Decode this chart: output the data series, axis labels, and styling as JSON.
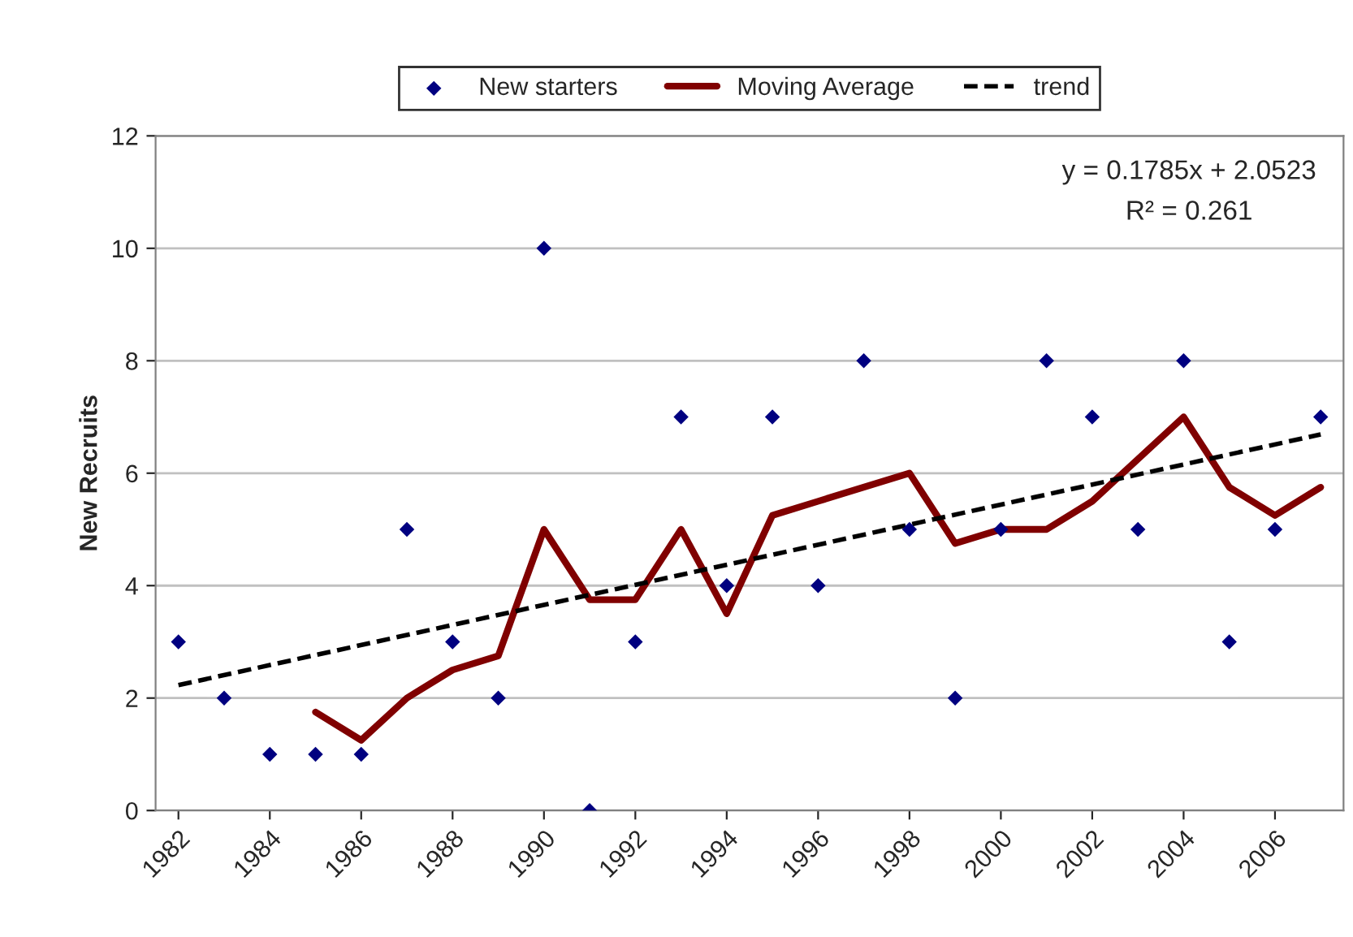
{
  "chart_data": {
    "type": "line",
    "ylabel": "New Recruits",
    "xlim": [
      1981.5,
      2007.5
    ],
    "xticks": [
      1982,
      1984,
      1986,
      1988,
      1990,
      1992,
      1994,
      1996,
      1998,
      2000,
      2002,
      2004,
      2006
    ],
    "ylim": [
      0,
      12
    ],
    "yticks": [
      0,
      2,
      4,
      6,
      8,
      10,
      12
    ],
    "grid": "y",
    "legend": "top",
    "annotations": [
      "y = 0.1785x + 2.0523",
      "R² = 0.261"
    ],
    "series": [
      {
        "name": "New starters",
        "type": "scatter",
        "marker": "diamond",
        "color": "#000080",
        "x": [
          1982,
          1983,
          1984,
          1985,
          1986,
          1987,
          1988,
          1989,
          1990,
          1991,
          1992,
          1993,
          1994,
          1995,
          1996,
          1997,
          1998,
          1999,
          2000,
          2001,
          2002,
          2003,
          2004,
          2005,
          2006,
          2007
        ],
        "values": [
          3,
          2,
          1,
          1,
          1,
          5,
          3,
          2,
          10,
          0,
          3,
          7,
          4,
          7,
          4,
          8,
          5,
          2,
          5,
          8,
          7,
          5,
          8,
          3,
          5,
          7
        ]
      },
      {
        "name": "Moving Average",
        "line_style": "solid",
        "color": "#800000",
        "x": [
          1985,
          1986,
          1987,
          1988,
          1989,
          1990,
          1991,
          1992,
          1993,
          1994,
          1995,
          1996,
          1997,
          1998,
          1999,
          2000,
          2001,
          2002,
          2003,
          2004,
          2005,
          2006,
          2007
        ],
        "values": [
          1.75,
          1.25,
          2,
          2.5,
          2.75,
          5,
          3.75,
          3.75,
          5,
          3.5,
          5.25,
          5.5,
          5.75,
          6,
          4.75,
          5,
          5,
          5.5,
          6.25,
          7,
          5.75,
          5.25,
          5.75
        ]
      },
      {
        "name": "trend",
        "line_style": "dashed",
        "color": "#000000",
        "x": [
          1982,
          2007
        ],
        "values": [
          2.23,
          6.69
        ]
      }
    ]
  }
}
